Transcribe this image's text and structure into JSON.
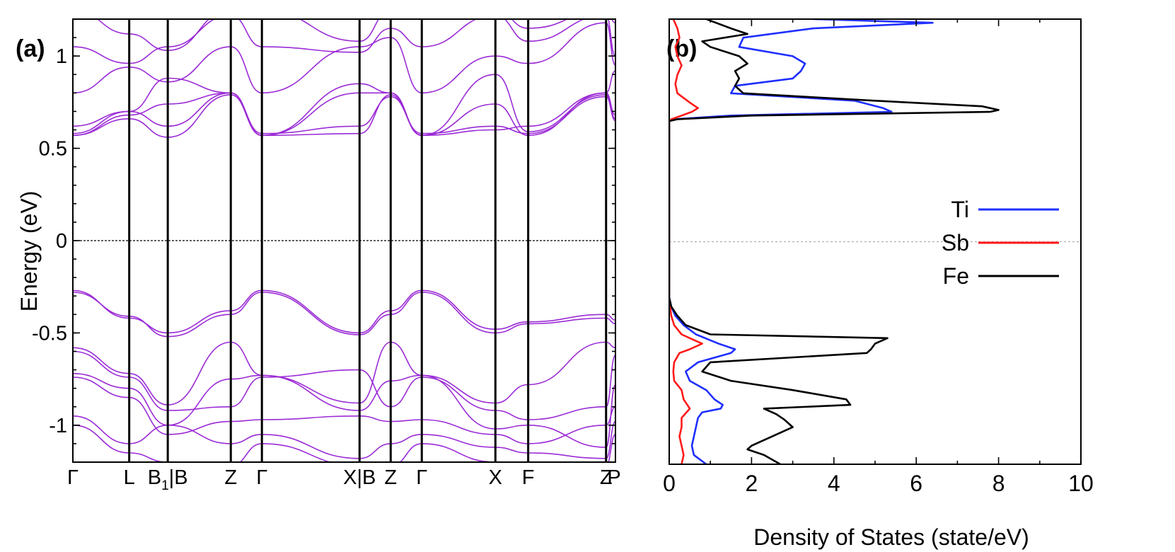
{
  "chart_data": [
    {
      "panel_label": "(a)",
      "type": "line",
      "ylabel": "Energy (eV)",
      "ylim": [
        -1.2,
        1.2
      ],
      "yticks": [
        {
          "value": 1,
          "label": "1"
        },
        {
          "value": 0.5,
          "label": "0.5"
        },
        {
          "value": 0,
          "label": "0"
        },
        {
          "value": -0.5,
          "label": "-0.5"
        },
        {
          "value": -1,
          "label": "-1"
        }
      ],
      "kpoints": [
        {
          "label": "Γ",
          "sub": "",
          "suffix": "",
          "pos": 0
        },
        {
          "label": "L",
          "sub": "",
          "suffix": "",
          "pos": 0.1444
        },
        {
          "label": "B",
          "sub": "1",
          "suffix": "|B",
          "pos": 0.2432
        },
        {
          "label": "Z",
          "sub": "",
          "suffix": "",
          "pos": 0.4047
        },
        {
          "label": "Γ",
          "sub": "",
          "suffix": "",
          "pos": 0.4844
        },
        {
          "label": "X|B",
          "sub": "",
          "suffix": "",
          "pos": 0.7346
        },
        {
          "label": "Z",
          "sub": "",
          "suffix": "",
          "pos": 0.8144
        },
        {
          "label": "Γ",
          "sub": "",
          "suffix": "",
          "pos": 0.8941
        },
        {
          "label": "X",
          "sub": "",
          "suffix": "",
          "pos": 1.0827
        },
        {
          "label": "F",
          "sub": "",
          "suffix": "",
          "pos": 1.1667
        },
        {
          "label": "Z",
          "sub": "",
          "suffix": "",
          "pos": 1.3663
        },
        {
          "label": "P",
          "sub": "",
          "suffix": "",
          "pos": 1.3903
        }
      ],
      "fermi_level": 0,
      "band_color": "#9b2bd6",
      "bands": {
        "conduction_band_minimum": 0.57,
        "valence_band_maximum": -0.27
      }
    },
    {
      "panel_label": "(b)",
      "type": "line",
      "xlabel": "Density of States (state/eV)",
      "xlim": [
        0,
        10
      ],
      "xticks": [
        {
          "value": 0,
          "label": "0"
        },
        {
          "value": 2,
          "label": "2"
        },
        {
          "value": 4,
          "label": "4"
        },
        {
          "value": 6,
          "label": "6"
        },
        {
          "value": 8,
          "label": "8"
        },
        {
          "value": 10,
          "label": "10"
        }
      ],
      "ylim": [
        -1.2,
        1.2
      ],
      "legend_position": "right",
      "series": [
        {
          "name": "Ti",
          "color": "#1f2fff",
          "energy": [
            1.2,
            1.18,
            1.15,
            1.1,
            1.05,
            1.0,
            0.96,
            0.92,
            0.88,
            0.84,
            0.8,
            0.76,
            0.72,
            0.7,
            0.68,
            0.66,
            0.65,
            0.4,
            0.0,
            -0.3,
            -0.35,
            -0.4,
            -0.45,
            -0.5,
            -0.55,
            -0.58,
            -0.6,
            -0.65,
            -0.7,
            -0.75,
            -0.8,
            -0.85,
            -0.88,
            -0.9,
            -0.92,
            -0.95,
            -1.0,
            -1.05,
            -1.1,
            -1.15,
            -1.2
          ],
          "dos": [
            3.5,
            6.4,
            3.5,
            1.8,
            1.7,
            3.0,
            3.3,
            3.2,
            3.0,
            1.6,
            1.5,
            4.5,
            5.2,
            5.4,
            1.5,
            0.1,
            0.0,
            0.0,
            0.0,
            0.0,
            0.05,
            0.15,
            0.35,
            0.65,
            1.2,
            1.6,
            1.5,
            0.7,
            0.4,
            0.5,
            0.9,
            1.1,
            1.3,
            1.25,
            0.8,
            0.7,
            0.65,
            0.6,
            0.55,
            0.6,
            0.9
          ]
        },
        {
          "name": "Sb",
          "color": "#ff1a1a",
          "energy": [
            1.2,
            1.15,
            1.1,
            1.05,
            1.0,
            0.95,
            0.9,
            0.85,
            0.8,
            0.75,
            0.72,
            0.7,
            0.68,
            0.66,
            0.65,
            0.4,
            0.0,
            -0.3,
            -0.35,
            -0.4,
            -0.45,
            -0.5,
            -0.53,
            -0.55,
            -0.58,
            -0.6,
            -0.65,
            -0.7,
            -0.75,
            -0.8,
            -0.85,
            -0.9,
            -0.95,
            -1.0,
            -1.05,
            -1.1,
            -1.15,
            -1.2
          ],
          "dos": [
            0.1,
            0.2,
            0.25,
            0.15,
            0.2,
            0.3,
            0.2,
            0.15,
            0.2,
            0.5,
            0.7,
            0.55,
            0.3,
            0.05,
            0.0,
            0.0,
            0.0,
            0.0,
            0.02,
            0.05,
            0.12,
            0.3,
            0.6,
            0.8,
            0.5,
            0.25,
            0.12,
            0.1,
            0.12,
            0.3,
            0.35,
            0.5,
            0.3,
            0.3,
            0.25,
            0.3,
            0.35,
            0.3
          ]
        },
        {
          "name": "Fe",
          "color": "#000000",
          "energy": [
            1.2,
            1.15,
            1.12,
            1.08,
            1.05,
            1.0,
            0.96,
            0.92,
            0.88,
            0.84,
            0.8,
            0.76,
            0.73,
            0.71,
            0.7,
            0.68,
            0.66,
            0.65,
            0.4,
            0.0,
            -0.3,
            -0.35,
            -0.4,
            -0.45,
            -0.5,
            -0.52,
            -0.55,
            -0.58,
            -0.6,
            -0.65,
            -0.7,
            -0.75,
            -0.8,
            -0.85,
            -0.88,
            -0.9,
            -0.93,
            -0.96,
            -1.0,
            -1.05,
            -1.08,
            -1.1,
            -1.12,
            -1.15,
            -1.2
          ],
          "dos": [
            0.9,
            1.5,
            1.9,
            0.8,
            1.0,
            1.7,
            1.9,
            1.6,
            1.7,
            1.6,
            1.8,
            5.0,
            7.6,
            8.0,
            7.8,
            2.0,
            0.2,
            0.0,
            0.0,
            0.0,
            0.0,
            0.05,
            0.2,
            0.4,
            1.0,
            5.3,
            5.0,
            4.9,
            4.8,
            1.0,
            0.8,
            1.5,
            3.0,
            4.3,
            4.4,
            2.3,
            2.6,
            2.8,
            3.0,
            2.5,
            2.2,
            2.0,
            1.9,
            2.3,
            2.7
          ]
        }
      ]
    }
  ]
}
